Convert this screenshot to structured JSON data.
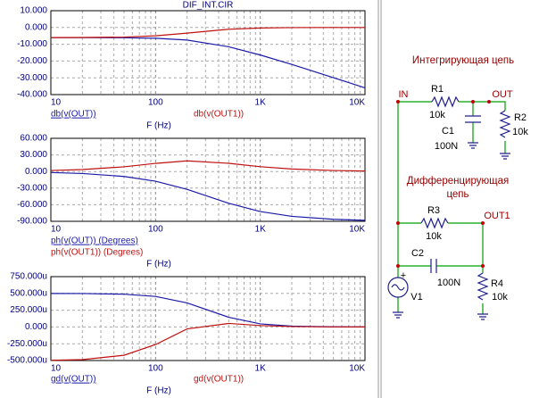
{
  "chart_data": [
    {
      "type": "line",
      "title": "DIF_INT.CIR",
      "xlabel": "F (Hz)",
      "xscale": "log",
      "grid": true,
      "x": [
        10,
        20,
        50,
        100,
        200,
        500,
        1000,
        2000,
        5000,
        10000
      ],
      "series": [
        {
          "name": "db(v(OUT))",
          "color": "#1a1aa8",
          "values": [
            -6.03,
            -6.04,
            -6.13,
            -6.43,
            -7.5,
            -11.5,
            -16.4,
            -22.0,
            -29.9,
            -36.0
          ]
        },
        {
          "name": "db(v(OUT1))",
          "color": "#c01010",
          "values": [
            -6.01,
            -5.97,
            -5.72,
            -4.98,
            -3.35,
            -1.06,
            -0.31,
            -0.08,
            -0.01,
            0.0
          ]
        }
      ],
      "xlim": [
        10,
        10000
      ],
      "xticks": [
        10,
        100,
        {
          "value": 1000,
          "label": "1K"
        },
        {
          "value": 10000,
          "label": "10K"
        }
      ],
      "ylim": [
        -40,
        10
      ],
      "yticks": [
        {
          "value": 10,
          "label": "10.000"
        },
        {
          "value": 0,
          "label": "0.000"
        },
        {
          "value": -10,
          "label": "-10.000"
        },
        {
          "value": -20,
          "label": "-20.000"
        },
        {
          "value": -30,
          "label": "-30.000"
        },
        {
          "value": -40,
          "label": "-40.000"
        }
      ]
    },
    {
      "type": "line",
      "xlabel": "F (Hz)",
      "xscale": "log",
      "grid": true,
      "x": [
        10,
        20,
        50,
        100,
        200,
        500,
        1000,
        2000,
        5000,
        10000
      ],
      "series": [
        {
          "name": "ph(v(OUT)) (Degrees)",
          "color": "#1a1aa8",
          "values": [
            -1.8,
            -3.6,
            -8.9,
            -17.5,
            -32.2,
            -57.5,
            -72.4,
            -81.0,
            -86.4,
            -88.2
          ]
        },
        {
          "name": "ph(v(OUT1)) (Degrees)",
          "color": "#c01010",
          "values": [
            1.8,
            3.6,
            8.5,
            14.7,
            19.3,
            14.8,
            8.7,
            4.5,
            1.8,
            0.9
          ]
        }
      ],
      "xlim": [
        10,
        10000
      ],
      "xticks": [
        10,
        100,
        {
          "value": 1000,
          "label": "1K"
        },
        {
          "value": 10000,
          "label": "10K"
        }
      ],
      "ylim": [
        -90,
        60
      ],
      "yticks": [
        {
          "value": 60,
          "label": "60.000"
        },
        {
          "value": 30,
          "label": "30.000"
        },
        {
          "value": 0,
          "label": "0.000"
        },
        {
          "value": -30,
          "label": "-30.000"
        },
        {
          "value": -60,
          "label": "-60.000"
        },
        {
          "value": -90,
          "label": "-90.000"
        }
      ]
    },
    {
      "type": "line",
      "xlabel": "F (Hz)",
      "xscale": "log",
      "grid": true,
      "x": [
        10,
        20,
        50,
        100,
        200,
        500,
        1000,
        2000,
        5000,
        10000
      ],
      "series": [
        {
          "name": "gd(v(OUT))",
          "color": "#1a1aa8",
          "values": [
            0.0004995,
            0.000498,
            0.000488,
            0.000455,
            0.000359,
            0.0001445,
            4.6e-05,
            1.24e-05,
            2e-06,
            5e-07
          ]
        },
        {
          "name": "gd(v(OUT1))",
          "color": "#c01010",
          "values": [
            -0.0004966,
            -0.0004864,
            -0.000422,
            -0.000262,
            -2.86e-05,
            5.25e-05,
            2.13e-05,
            6.1e-06,
            1e-06,
            2.5e-07
          ]
        }
      ],
      "xlim": [
        10,
        10000
      ],
      "xticks": [
        10,
        100,
        {
          "value": 1000,
          "label": "1K"
        },
        {
          "value": 10000,
          "label": "10K"
        }
      ],
      "ylim": [
        -0.0005,
        0.00075
      ],
      "yticks": [
        {
          "value": 0.00075,
          "label": "750.000u"
        },
        {
          "value": 0.0005,
          "label": "500.000u"
        },
        {
          "value": 0.00025,
          "label": "250.000u"
        },
        {
          "value": 0,
          "label": "0.000"
        },
        {
          "value": -0.00025,
          "label": "-250.000u"
        },
        {
          "value": -0.0005,
          "label": "-500.000u"
        }
      ]
    }
  ],
  "schematic": {
    "integrator_title": "Интегрирующая цепь",
    "in": "IN",
    "r1": "R1",
    "r1_value": "10k",
    "out": "OUT",
    "c1": "C1",
    "c1_value": "100N",
    "r2": "R2",
    "r2_value": "10k",
    "differentiator_title": "Дифференцирующая цепь",
    "r3": "R3",
    "r3_value": "10k",
    "out1": "OUT1",
    "c2": "C2",
    "c2_value": "100N",
    "r4": "R4",
    "r4_value": "10k",
    "v1": "V1",
    "plus": "+"
  }
}
